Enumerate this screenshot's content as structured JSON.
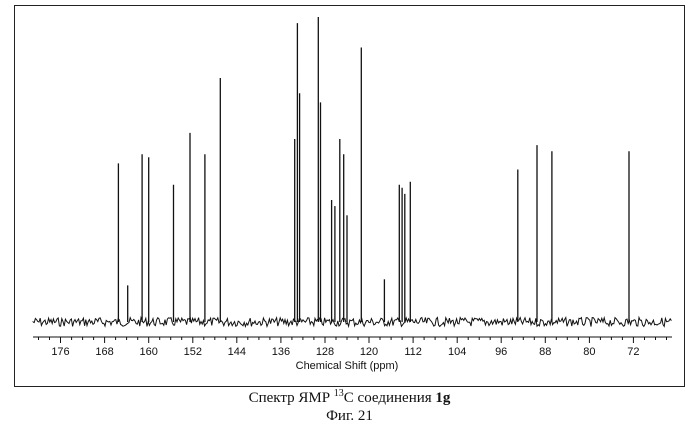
{
  "chart_data": {
    "type": "line",
    "xlabel": "Chemical Shift (ppm)",
    "x_tick_labels": [
      "176",
      "168",
      "160",
      "152",
      "144",
      "136",
      "128",
      "120",
      "112",
      "104",
      "96",
      "88",
      "80",
      "72"
    ],
    "xlim": [
      181,
      65
    ],
    "x_reversed": true,
    "peaks": [
      {
        "ppm": 165.5,
        "height": 0.52
      },
      {
        "ppm": 163.8,
        "height": 0.12
      },
      {
        "ppm": 161.2,
        "height": 0.55
      },
      {
        "ppm": 160.0,
        "height": 0.54
      },
      {
        "ppm": 155.5,
        "height": 0.45
      },
      {
        "ppm": 152.5,
        "height": 0.62
      },
      {
        "ppm": 149.8,
        "height": 0.55
      },
      {
        "ppm": 147.0,
        "height": 0.8
      },
      {
        "ppm": 133.5,
        "height": 0.6
      },
      {
        "ppm": 133.0,
        "height": 0.98
      },
      {
        "ppm": 132.6,
        "height": 0.75
      },
      {
        "ppm": 129.2,
        "height": 1.0
      },
      {
        "ppm": 128.8,
        "height": 0.72
      },
      {
        "ppm": 126.8,
        "height": 0.4
      },
      {
        "ppm": 126.2,
        "height": 0.38
      },
      {
        "ppm": 125.3,
        "height": 0.6
      },
      {
        "ppm": 124.6,
        "height": 0.55
      },
      {
        "ppm": 124.0,
        "height": 0.35
      },
      {
        "ppm": 121.4,
        "height": 0.9
      },
      {
        "ppm": 117.2,
        "height": 0.14
      },
      {
        "ppm": 114.5,
        "height": 0.45
      },
      {
        "ppm": 114.0,
        "height": 0.44
      },
      {
        "ppm": 113.5,
        "height": 0.42
      },
      {
        "ppm": 112.5,
        "height": 0.46
      },
      {
        "ppm": 93.0,
        "height": 0.5
      },
      {
        "ppm": 89.5,
        "height": 0.58
      },
      {
        "ppm": 86.8,
        "height": 0.56
      },
      {
        "ppm": 72.8,
        "height": 0.56
      }
    ]
  },
  "caption": {
    "prefix": "Спектр ЯМР ",
    "sup": "13",
    "middle": "C соединения ",
    "compound": "1g",
    "figure": "Фиг. 21"
  }
}
